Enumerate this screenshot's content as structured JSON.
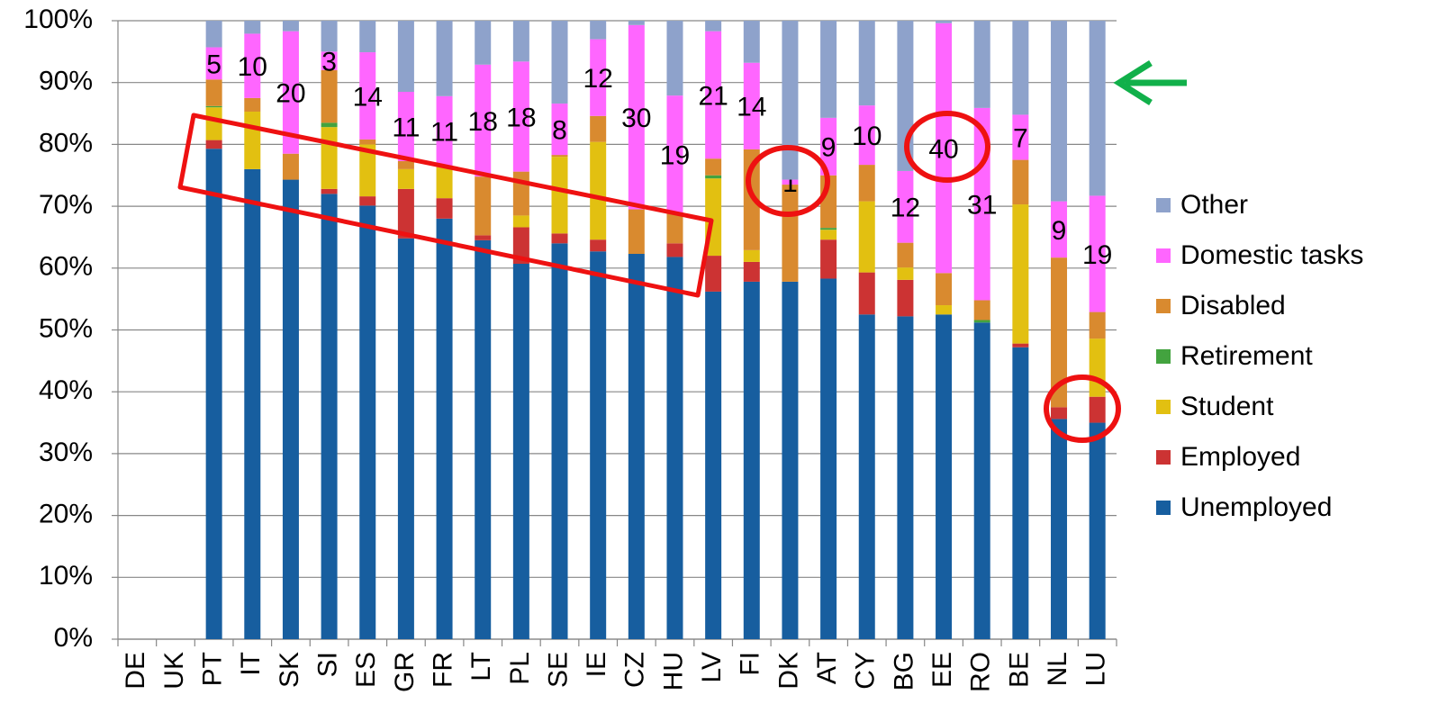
{
  "chart_data": {
    "type": "stacked_bar",
    "categories": [
      "DE",
      "UK",
      "PT",
      "IT",
      "SK",
      "SI",
      "ES",
      "GR",
      "FR",
      "LT",
      "PL",
      "SE",
      "IE",
      "CZ",
      "HU",
      "LV",
      "FI",
      "DK",
      "AT",
      "CY",
      "BG",
      "EE",
      "RO",
      "BE",
      "NL",
      "LU"
    ],
    "series": [
      {
        "name": "Unemployed",
        "color": "#175e9f",
        "values": [
          null,
          null,
          79.3,
          76,
          74.3,
          72,
          70.1,
          64.8,
          68,
          64.5,
          60.7,
          64,
          62.7,
          62.3,
          61.8,
          56.2,
          57.8,
          57.8,
          58.3,
          52.5,
          52.2,
          52.5,
          51.2,
          47.2,
          35.6,
          35
        ]
      },
      {
        "name": "Employed",
        "color": "#cc3333",
        "values": [
          null,
          null,
          1.4,
          0,
          0,
          0.8,
          1.5,
          8,
          3.3,
          0.8,
          5.9,
          1.6,
          1.9,
          0,
          2.2,
          5.8,
          3.2,
          0,
          6.3,
          6.8,
          5.9,
          0,
          0,
          0.6,
          1.9,
          4.2
        ]
      },
      {
        "name": "Student",
        "color": "#e2c011",
        "values": [
          null,
          null,
          5.3,
          9.3,
          0,
          10,
          8.4,
          3.2,
          5,
          0,
          1.9,
          12.4,
          15.8,
          0,
          0,
          12.5,
          1.9,
          0,
          1.6,
          11.5,
          2,
          1.5,
          0,
          22.5,
          0,
          9.4
        ]
      },
      {
        "name": "Retirement",
        "color": "#43a33f",
        "values": [
          null,
          null,
          0.2,
          0,
          0,
          0.7,
          0,
          0,
          0,
          0,
          0,
          0,
          0,
          0,
          0,
          0.5,
          0,
          0,
          0.3,
          0,
          0,
          0,
          0.4,
          0,
          0,
          0
        ]
      },
      {
        "name": "Disabled",
        "color": "#d98a2f",
        "values": [
          null,
          null,
          4.3,
          2.2,
          4.2,
          8.5,
          0.8,
          1.3,
          0.2,
          9.5,
          7.1,
          0.3,
          4.2,
          7.2,
          4.8,
          2.7,
          16.3,
          15.7,
          8.5,
          5.9,
          4,
          5.2,
          3.2,
          7.2,
          24.2,
          4.3
        ]
      },
      {
        "name": "Domestic tasks",
        "color": "#ff66ff",
        "values": [
          null,
          null,
          5.2,
          10.4,
          19.8,
          3,
          14.1,
          11.2,
          11.3,
          18.1,
          17.8,
          8.3,
          12.4,
          29.8,
          19.1,
          20.6,
          14,
          0.8,
          9.3,
          9.6,
          11.6,
          40.4,
          31.1,
          7.3,
          9.1,
          18.8
        ],
        "value_labels": [
          null,
          null,
          "5",
          "10",
          "20",
          "3",
          "14",
          "11",
          "11",
          "18",
          "18",
          "8",
          "12",
          "30",
          "19",
          "21",
          "14",
          "1",
          "9",
          "10",
          "12",
          "40",
          "31",
          "7",
          "9",
          "19"
        ]
      },
      {
        "name": "Other",
        "color": "#8ea2cb",
        "values": [
          null,
          null,
          4.3,
          2.1,
          1.7,
          5,
          5.1,
          11.5,
          12.2,
          7.1,
          6.6,
          13.4,
          3,
          0.7,
          12.1,
          1.7,
          6.8,
          25.7,
          15.7,
          13.7,
          24.3,
          0.4,
          14.1,
          15.2,
          29.2,
          28.3
        ]
      }
    ],
    "ylim": [
      0,
      100
    ],
    "yticks": [
      {
        "value": 0,
        "label": "0%"
      },
      {
        "value": 10,
        "label": "10%"
      },
      {
        "value": 20,
        "label": "20%"
      },
      {
        "value": 30,
        "label": "30%"
      },
      {
        "value": 40,
        "label": "40%"
      },
      {
        "value": 50,
        "label": "50%"
      },
      {
        "value": 60,
        "label": "60%"
      },
      {
        "value": 70,
        "label": "70%"
      },
      {
        "value": 80,
        "label": "80%"
      },
      {
        "value": 90,
        "label": "90%"
      },
      {
        "value": 100,
        "label": "100%"
      }
    ],
    "grid": true,
    "legend": "right"
  }
}
